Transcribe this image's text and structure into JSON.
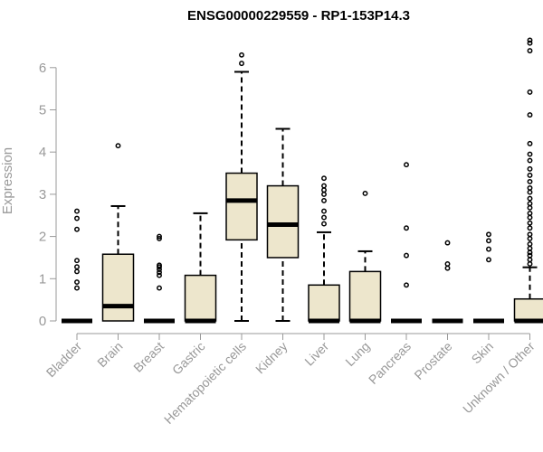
{
  "chart_data": {
    "type": "box",
    "title": "ENSG00000229559 - RP1-153P14.3",
    "xlabel": "",
    "ylabel": "Expression",
    "ylim": [
      0,
      6.5
    ],
    "yticks": [
      0,
      1,
      2,
      3,
      4,
      5,
      6
    ],
    "categories": [
      "Bladder",
      "Brain",
      "Breast",
      "Gastric",
      "Hematopoietic cells",
      "Kidney",
      "Liver",
      "Lung",
      "Pancreas",
      "Prostate",
      "Skin",
      "Unknown / Other"
    ],
    "box_fill": "#ede6cc",
    "box_stroke": "#000000",
    "boxes": [
      {
        "category": "Bladder",
        "min": 0,
        "q1": 0,
        "median": 0,
        "q3": 0,
        "max": 0,
        "outliers": [
          0.78,
          0.92,
          1.17,
          1.28,
          1.43,
          2.17,
          2.43,
          2.6
        ]
      },
      {
        "category": "Brain",
        "min": 0,
        "q1": 0,
        "median": 0.35,
        "q3": 1.58,
        "max": 2.72,
        "outliers": [
          4.15
        ]
      },
      {
        "category": "Breast",
        "min": 0,
        "q1": 0,
        "median": 0,
        "q3": 0,
        "max": 0,
        "outliers": [
          0.78,
          1.08,
          1.15,
          1.22,
          1.28,
          1.32,
          1.95,
          2.0
        ]
      },
      {
        "category": "Gastric",
        "min": 0,
        "q1": 0,
        "median": 0,
        "q3": 1.08,
        "max": 2.55,
        "outliers": []
      },
      {
        "category": "Hematopoietic cells",
        "min": 0,
        "q1": 1.92,
        "median": 2.85,
        "q3": 3.5,
        "max": 5.9,
        "outliers": [
          6.1,
          6.3
        ]
      },
      {
        "category": "Kidney",
        "min": 0,
        "q1": 1.5,
        "median": 2.28,
        "q3": 3.2,
        "max": 4.55,
        "outliers": []
      },
      {
        "category": "Liver",
        "min": 0,
        "q1": 0,
        "median": 0,
        "q3": 0.85,
        "max": 2.1,
        "outliers": [
          2.3,
          2.45,
          2.6,
          2.85,
          3.0,
          3.1,
          3.2,
          3.38
        ]
      },
      {
        "category": "Lung",
        "min": 0,
        "q1": 0,
        "median": 0,
        "q3": 1.17,
        "max": 1.65,
        "outliers": [
          3.02
        ]
      },
      {
        "category": "Pancreas",
        "min": 0,
        "q1": 0,
        "median": 0,
        "q3": 0,
        "max": 0,
        "outliers": [
          0.85,
          1.55,
          2.2,
          3.7
        ]
      },
      {
        "category": "Prostate",
        "min": 0,
        "q1": 0,
        "median": 0,
        "q3": 0,
        "max": 0,
        "outliers": [
          1.25,
          1.35,
          1.85
        ]
      },
      {
        "category": "Skin",
        "min": 0,
        "q1": 0,
        "median": 0,
        "q3": 0,
        "max": 0,
        "outliers": [
          1.45,
          1.7,
          1.9,
          2.05
        ]
      },
      {
        "category": "Unknown / Other",
        "min": 0,
        "q1": 0,
        "median": 0,
        "q3": 0.52,
        "max": 1.27,
        "outliers": [
          1.35,
          1.45,
          1.55,
          1.62,
          1.72,
          1.82,
          1.95,
          2.05,
          2.2,
          2.32,
          2.45,
          2.55,
          2.68,
          2.78,
          2.9,
          3.05,
          3.15,
          3.3,
          3.45,
          3.6,
          3.8,
          3.95,
          4.2,
          4.88,
          5.42,
          6.4,
          6.58,
          6.65
        ]
      }
    ]
  }
}
